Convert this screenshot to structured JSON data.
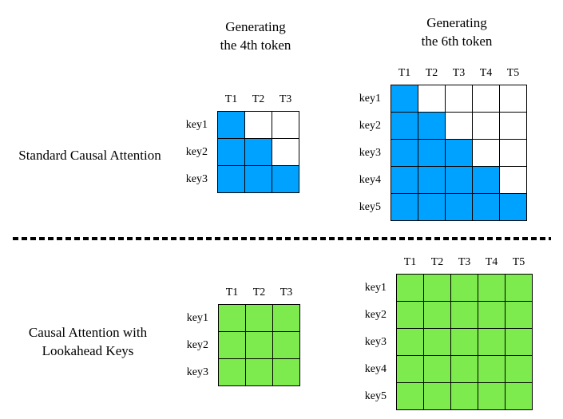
{
  "colors": {
    "background": "#FFFFFF",
    "filled_blue": "#00A2FF",
    "filled_green": "#7DEB4D",
    "empty_cell": "#FFFFFF",
    "grid_line": "#000000",
    "text": "#000000",
    "divider": "#000000"
  },
  "titles": {
    "token4": [
      "Generating",
      "the 4th token"
    ],
    "token6": [
      "Generating",
      "the 6th token"
    ]
  },
  "sections": {
    "standard": {
      "label_lines": [
        "Standard Causal Attention"
      ]
    },
    "lookahead": {
      "label_lines": [
        "Causal Attention with",
        "Lookahead Keys"
      ]
    }
  },
  "grids": [
    {
      "id": "standard-3x3",
      "columns": [
        "T1",
        "T2",
        "T3"
      ],
      "rows": [
        "key1",
        "key2",
        "key3"
      ],
      "fill_color": "#00A2FF",
      "cells": [
        [
          1,
          0,
          0
        ],
        [
          1,
          1,
          0
        ],
        [
          1,
          1,
          1
        ]
      ]
    },
    {
      "id": "standard-5x5",
      "columns": [
        "T1",
        "T2",
        "T3",
        "T4",
        "T5"
      ],
      "rows": [
        "key1",
        "key2",
        "key3",
        "key4",
        "key5"
      ],
      "fill_color": "#00A2FF",
      "cells": [
        [
          1,
          0,
          0,
          0,
          0
        ],
        [
          1,
          1,
          0,
          0,
          0
        ],
        [
          1,
          1,
          1,
          0,
          0
        ],
        [
          1,
          1,
          1,
          1,
          0
        ],
        [
          1,
          1,
          1,
          1,
          1
        ]
      ]
    },
    {
      "id": "lookahead-3x3",
      "columns": [
        "T1",
        "T2",
        "T3"
      ],
      "rows": [
        "key1",
        "key2",
        "key3"
      ],
      "fill_color": "#7DEB4D",
      "cells": [
        [
          1,
          1,
          1
        ],
        [
          1,
          1,
          1
        ],
        [
          1,
          1,
          1
        ]
      ]
    },
    {
      "id": "lookahead-5x5",
      "columns": [
        "T1",
        "T2",
        "T3",
        "T4",
        "T5"
      ],
      "rows": [
        "key1",
        "key2",
        "key3",
        "key4",
        "key5"
      ],
      "fill_color": "#7DEB4D",
      "cells": [
        [
          1,
          1,
          1,
          1,
          1
        ],
        [
          1,
          1,
          1,
          1,
          1
        ],
        [
          1,
          1,
          1,
          1,
          1
        ],
        [
          1,
          1,
          1,
          1,
          1
        ],
        [
          1,
          1,
          1,
          1,
          1
        ]
      ]
    }
  ]
}
